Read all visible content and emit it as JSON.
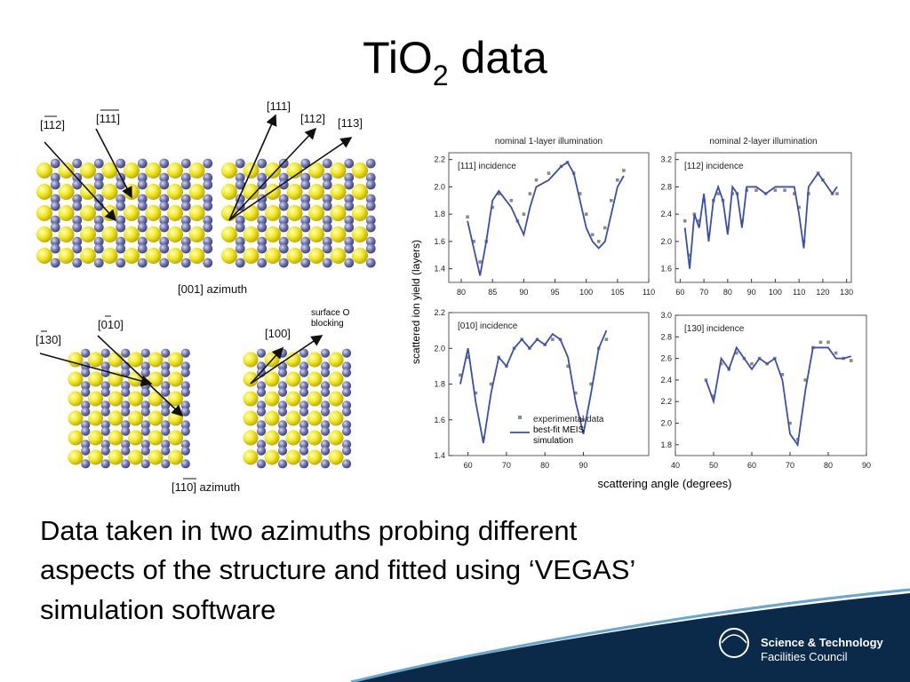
{
  "title": {
    "main": "TiO",
    "sub": "2",
    "rest": " data"
  },
  "diagram": {
    "labels": [
      "[112]",
      "[111]",
      "[111]",
      "[112]",
      "[113]",
      "[001] azimuth",
      "[010]",
      "[130]",
      "[100]",
      "surface O blocking",
      "[110] azimuth"
    ]
  },
  "figure": {
    "y_label": "scattered ion yield (layers)",
    "x_label": "scattering angle (degrees)",
    "legend": [
      "experimental data",
      "best-fit MEIS simulation"
    ],
    "panels": [
      {
        "title": "nominal 1-layer illumination",
        "label": "[111] incidence",
        "xlim": [
          78,
          110
        ],
        "xticks": [
          80,
          85,
          90,
          95,
          100,
          105,
          110
        ],
        "ylim": [
          1.3,
          2.25
        ],
        "yticks": [
          1.4,
          1.6,
          1.8,
          {
            "value": 2,
            "label": "2.0"
          },
          2.2
        ],
        "x": [
          81,
          82,
          83,
          84,
          85,
          86,
          88,
          89,
          90,
          91,
          92,
          94,
          96,
          97,
          98,
          99,
          100,
          101,
          102,
          103,
          104,
          105,
          106
        ],
        "fit": [
          1.75,
          1.55,
          1.35,
          1.6,
          1.9,
          1.97,
          1.85,
          1.75,
          1.65,
          1.85,
          2.0,
          2.05,
          2.15,
          2.18,
          2.1,
          1.9,
          1.7,
          1.6,
          1.55,
          1.6,
          1.8,
          2.0,
          2.08
        ],
        "experimental": [
          1.78,
          1.6,
          1.45,
          1.6,
          1.85,
          1.95,
          1.9,
          1.75,
          1.8,
          1.95,
          2.05,
          2.1,
          2.15,
          2.18,
          2.1,
          1.95,
          1.8,
          1.65,
          1.6,
          1.7,
          1.9,
          2.05,
          2.12
        ]
      },
      {
        "title": "nominal 2-layer illumination",
        "label": "[112] incidence",
        "xlim": [
          58,
          132
        ],
        "xticks": [
          60,
          70,
          80,
          90,
          100,
          110,
          120,
          130
        ],
        "ylim": [
          1.4,
          3.3
        ],
        "yticks": [
          1.6,
          {
            "value": 2,
            "label": "2.0"
          },
          2.4,
          2.8,
          3.2
        ],
        "x": [
          62,
          64,
          66,
          68,
          70,
          72,
          74,
          76,
          78,
          80,
          82,
          84,
          86,
          88,
          92,
          96,
          100,
          104,
          108,
          110,
          112,
          114,
          118,
          120,
          124,
          126
        ],
        "fit": [
          2.2,
          1.6,
          2.4,
          2.2,
          2.7,
          2.0,
          2.6,
          2.8,
          2.6,
          2.1,
          2.8,
          2.7,
          2.2,
          2.8,
          2.8,
          2.7,
          2.8,
          2.8,
          2.8,
          2.4,
          1.9,
          2.8,
          3.0,
          2.9,
          2.7,
          2.8
        ],
        "experimental": [
          2.3,
          1.8,
          2.4,
          2.3,
          2.6,
          2.1,
          2.6,
          2.7,
          2.6,
          2.2,
          2.7,
          2.7,
          2.3,
          2.75,
          2.75,
          2.7,
          2.75,
          2.75,
          2.7,
          2.5,
          2.0,
          2.7,
          3.0,
          2.9,
          2.7,
          2.7
        ]
      },
      {
        "label": "[010] incidence",
        "xlim": [
          55,
          107
        ],
        "xticks": [
          60,
          70,
          80,
          90
        ],
        "ylim": [
          1.4,
          2.2
        ],
        "yticks": [
          1.4,
          1.6,
          1.8,
          {
            "value": 2,
            "label": "2.0"
          },
          2.2
        ],
        "x": [
          58,
          60,
          62,
          64,
          66,
          68,
          70,
          72,
          74,
          76,
          78,
          80,
          82,
          84,
          86,
          88,
          90,
          92,
          94,
          96
        ],
        "fit": [
          1.8,
          2.0,
          1.7,
          1.47,
          1.75,
          1.95,
          1.9,
          2.0,
          2.05,
          2.0,
          2.05,
          2.02,
          2.08,
          2.05,
          1.95,
          1.7,
          1.52,
          1.75,
          2.0,
          2.1
        ],
        "experimental": [
          1.85,
          1.95,
          1.75,
          1.5,
          1.8,
          1.95,
          1.9,
          2.0,
          2.05,
          2.0,
          2.05,
          2.02,
          2.05,
          2.05,
          1.9,
          1.75,
          1.6,
          1.8,
          2.0,
          2.05
        ]
      },
      {
        "label": "[130] incidence",
        "xlim": [
          40,
          90
        ],
        "xticks": [
          40,
          50,
          60,
          70,
          80,
          90
        ],
        "ylim": [
          1.7,
          3.0
        ],
        "yticks": [
          1.8,
          {
            "value": 2,
            "label": "2.0"
          },
          2.2,
          2.4,
          2.6,
          2.8,
          {
            "value": 3,
            "label": "3.0"
          }
        ],
        "x": [
          48,
          50,
          52,
          54,
          56,
          58,
          60,
          62,
          64,
          66,
          68,
          70,
          72,
          74,
          76,
          78,
          80,
          82,
          84,
          86
        ],
        "fit": [
          2.4,
          2.2,
          2.6,
          2.5,
          2.7,
          2.6,
          2.5,
          2.6,
          2.55,
          2.6,
          2.4,
          1.9,
          1.8,
          2.3,
          2.7,
          2.7,
          2.7,
          2.6,
          2.6,
          2.62
        ],
        "experimental": [
          2.4,
          2.25,
          2.55,
          2.5,
          2.65,
          2.6,
          2.55,
          2.6,
          2.55,
          2.6,
          2.45,
          2.0,
          1.85,
          2.4,
          2.7,
          2.75,
          2.75,
          2.65,
          2.6,
          2.58
        ]
      }
    ]
  },
  "body": {
    "lines": [
      "Data taken in two azimuths probing different",
      "aspects of the structure and fitted using ‘VEGAS’",
      "simulation software"
    ]
  },
  "logo": {
    "line1": "Science & Technology",
    "line2": "Facilities Council"
  }
}
